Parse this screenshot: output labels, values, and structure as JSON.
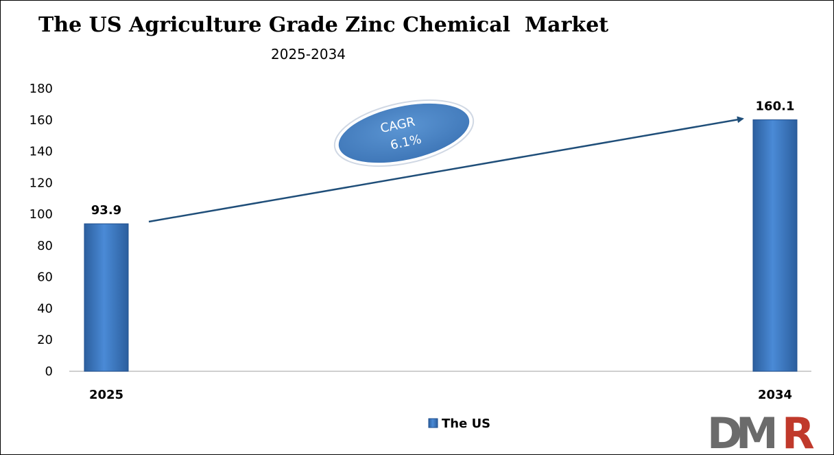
{
  "chart_data": {
    "type": "bar",
    "title": "The US Agriculture Grade Zinc Chemical  Market",
    "subtitle": "2025-2034",
    "categories": [
      "2025",
      "2034"
    ],
    "series": [
      {
        "name": "The US",
        "values": [
          93.9,
          160.1
        ]
      }
    ],
    "data_labels": [
      "93.9",
      "160.1"
    ],
    "ylim": [
      0,
      180
    ],
    "yticks": [
      0,
      20,
      40,
      60,
      80,
      100,
      120,
      140,
      160,
      180
    ],
    "grid": false,
    "legend": "bottom-center",
    "annotation": {
      "line1": "CAGR",
      "line2": "6.1%"
    },
    "colors": {
      "bar": "#3a78c2",
      "bar_dark": "#1f4f8f",
      "arrow": "#1f4e79",
      "ellipse": "#4a84c4"
    }
  },
  "logo": {
    "text_d": "D",
    "text_m": "M",
    "text_r": "R",
    "color_grey": "#666666",
    "color_red": "#c0392b"
  }
}
